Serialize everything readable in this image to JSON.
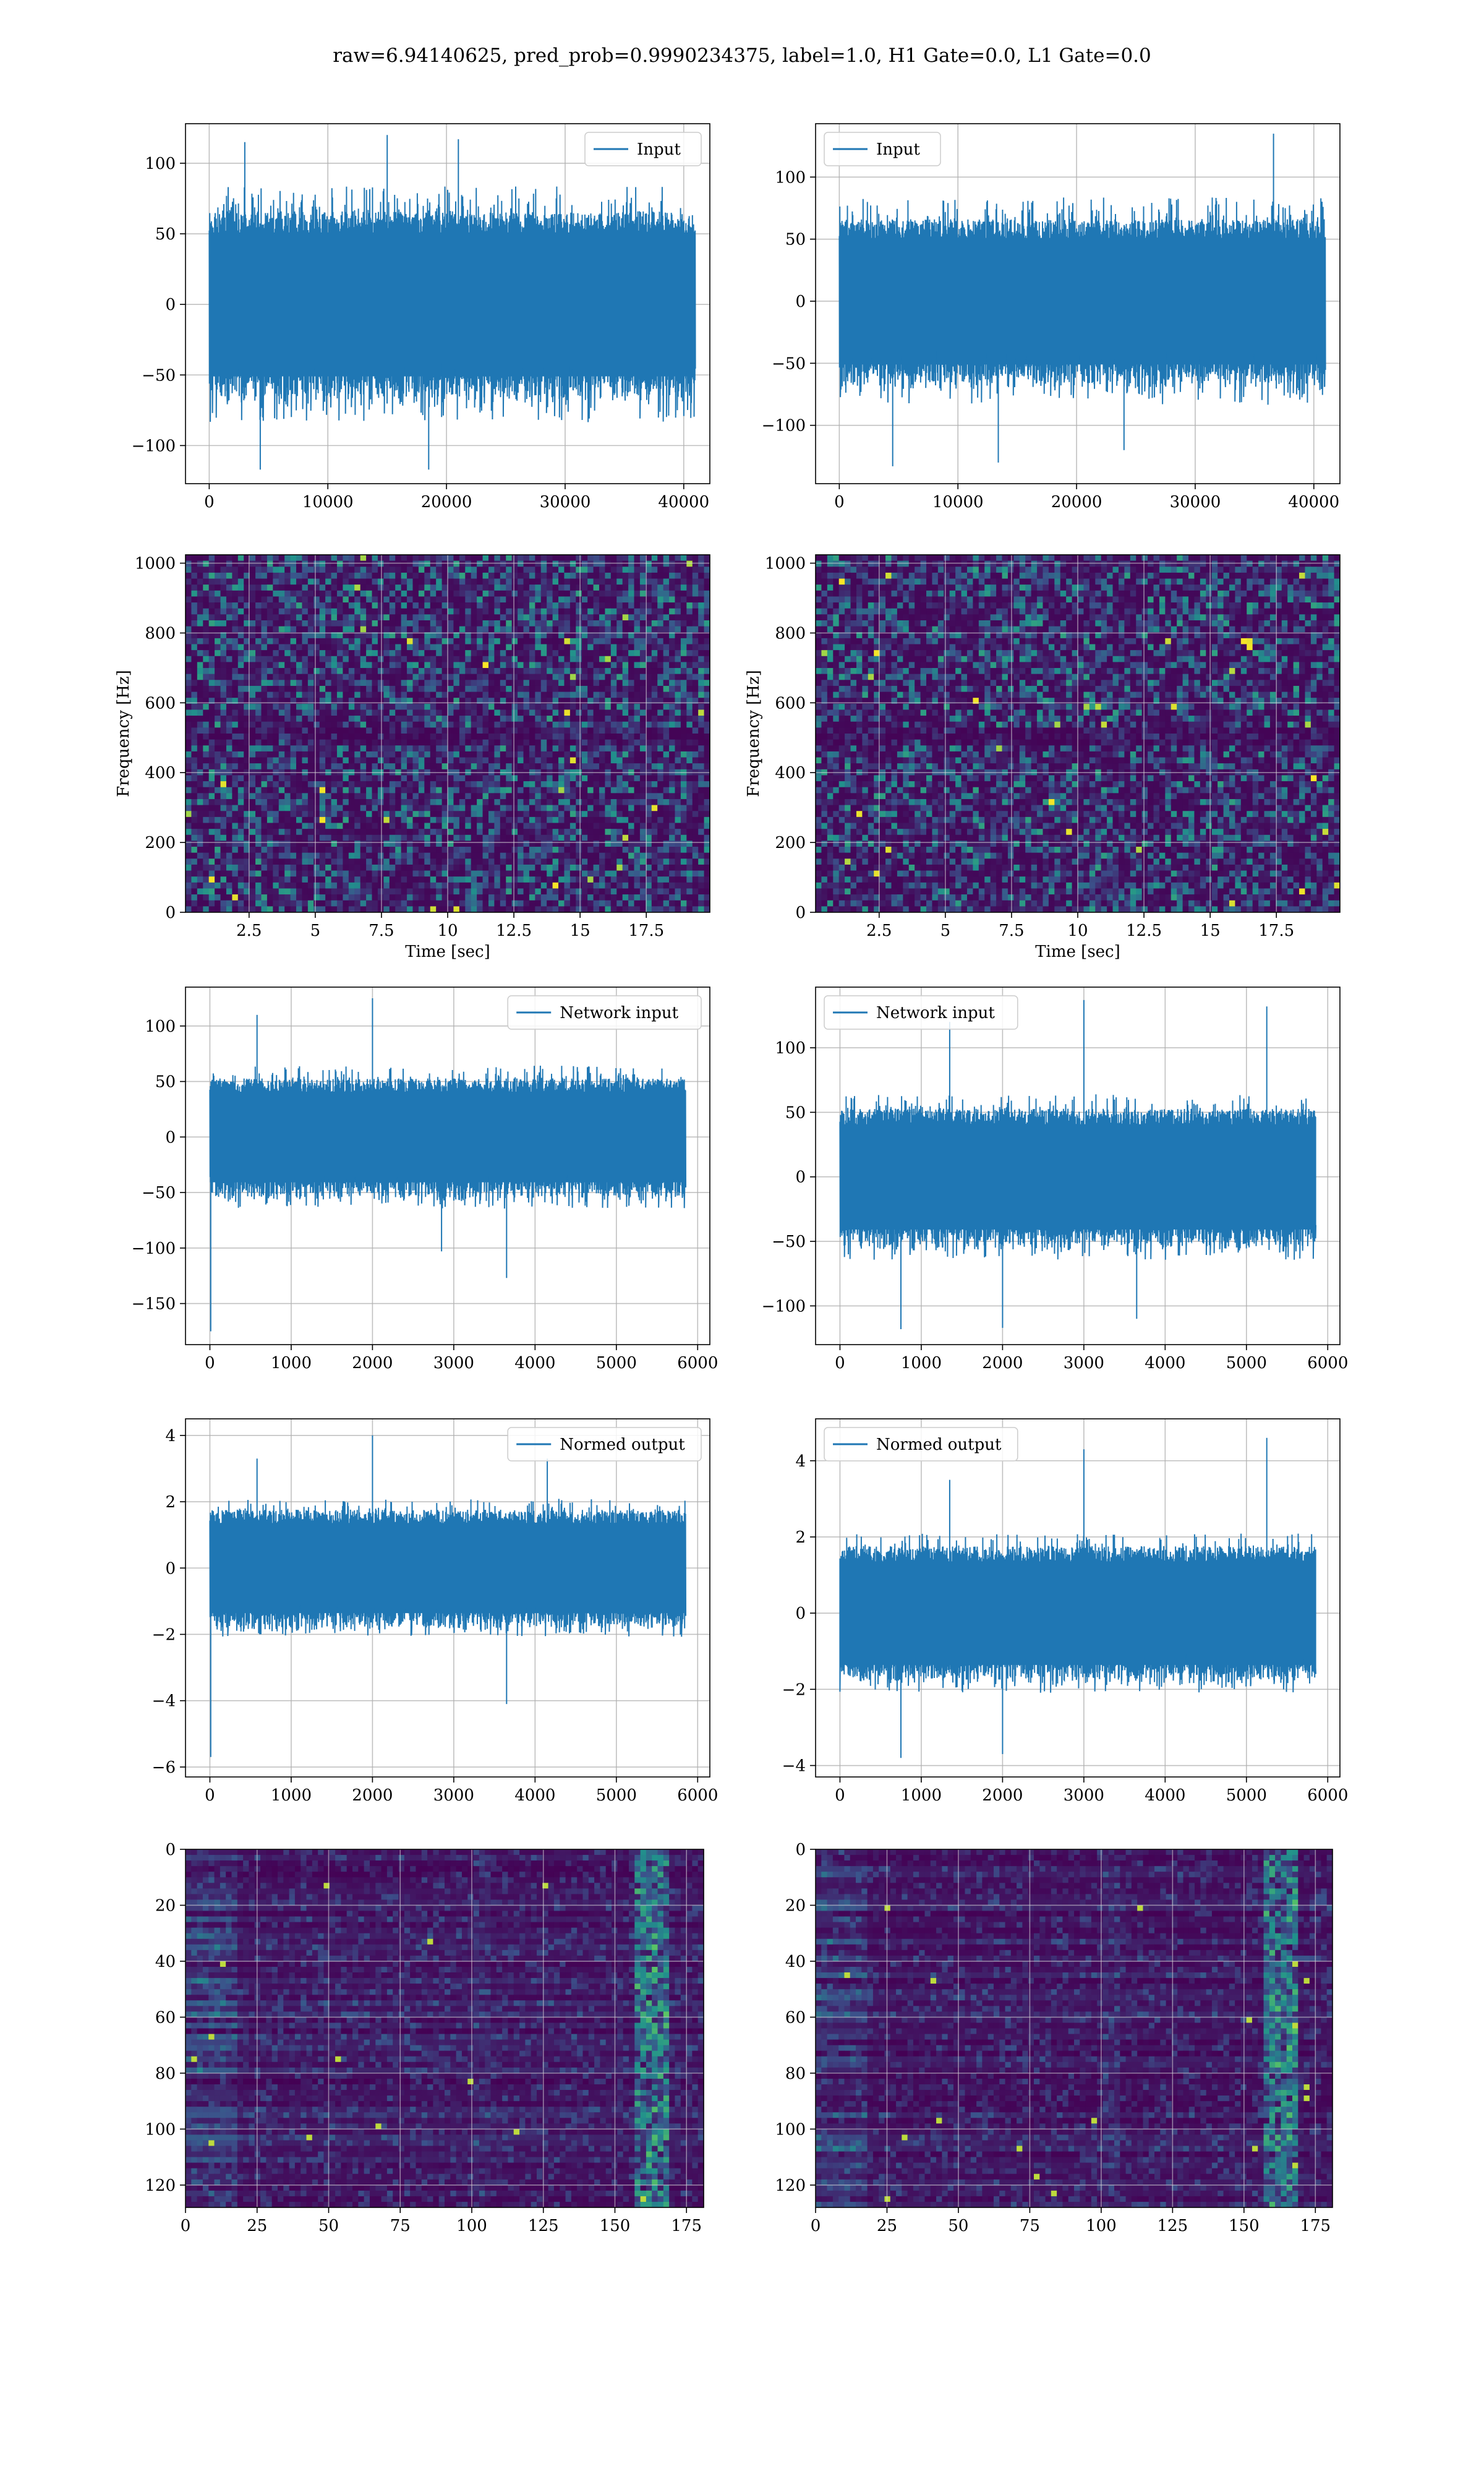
{
  "figure": {
    "title": "raw=6.94140625, pred_prob=0.9990234375, label=1.0, H1 Gate=0.0, L1 Gate=0.0"
  },
  "colors": {
    "series": "#1f77b4",
    "grid": "#b0b0b0",
    "axes": "#000000"
  },
  "chart_data": [
    {
      "id": "input_h1",
      "type": "line",
      "legend": "Input",
      "legend_position": "top-right",
      "xlim": [
        -2000,
        42200
      ],
      "ylim": [
        -127,
        128
      ],
      "xticks": [
        0,
        10000,
        20000,
        30000,
        40000
      ],
      "yticks": [
        -100,
        -50,
        0,
        50,
        100
      ],
      "x_range": [
        0,
        40960
      ],
      "n_points": 900,
      "noise_sigma": 22,
      "envelope": 60,
      "spikes": [
        [
          3000,
          115
        ],
        [
          15000,
          120
        ],
        [
          21000,
          117
        ],
        [
          4300,
          -117
        ],
        [
          18500,
          -117
        ]
      ],
      "grid": true
    },
    {
      "id": "input_l1",
      "type": "line",
      "legend": "Input",
      "legend_position": "top-left",
      "xlim": [
        -2000,
        42200
      ],
      "ylim": [
        -147,
        143
      ],
      "xticks": [
        0,
        10000,
        20000,
        30000,
        40000
      ],
      "yticks": [
        -100,
        -50,
        0,
        50,
        100
      ],
      "x_range": [
        0,
        40960
      ],
      "n_points": 900,
      "noise_sigma": 22,
      "envelope": 60,
      "spikes": [
        [
          36600,
          135
        ],
        [
          4500,
          -133
        ],
        [
          13400,
          -130
        ],
        [
          24000,
          -120
        ]
      ],
      "grid": true
    },
    {
      "id": "spec_h1",
      "type": "heatmap",
      "colormap": "viridis",
      "xlim": [
        0.1,
        19.9
      ],
      "ylim": [
        0,
        1024
      ],
      "xticks": [
        2.5,
        5.0,
        7.5,
        10.0,
        12.5,
        15.0,
        17.5
      ],
      "yticks": [
        0,
        200,
        400,
        600,
        800,
        1000
      ],
      "xlabel": "Time [sec]",
      "ylabel": "Frequency [Hz]",
      "grid": true,
      "seed": 11
    },
    {
      "id": "spec_l1",
      "type": "heatmap",
      "colormap": "viridis",
      "xlim": [
        0.1,
        19.9
      ],
      "ylim": [
        0,
        1024
      ],
      "xticks": [
        2.5,
        5.0,
        7.5,
        10.0,
        12.5,
        15.0,
        17.5
      ],
      "yticks": [
        0,
        200,
        400,
        600,
        800,
        1000
      ],
      "xlabel": "Time [sec]",
      "ylabel": "Frequency [Hz]",
      "grid": true,
      "seed": 23
    },
    {
      "id": "net_h1",
      "type": "line",
      "legend": "Network input",
      "legend_position": "top-right",
      "xlim": [
        -300,
        6150
      ],
      "ylim": [
        -187,
        135
      ],
      "xticks": [
        0,
        1000,
        2000,
        3000,
        4000,
        5000,
        6000
      ],
      "yticks": [
        -150,
        -100,
        -50,
        0,
        50,
        100
      ],
      "x_range": [
        0,
        5850
      ],
      "n_points": 850,
      "noise_sigma": 17,
      "envelope": 48,
      "spikes": [
        [
          10,
          -175
        ],
        [
          2000,
          125
        ],
        [
          3650,
          -127
        ],
        [
          580,
          110
        ],
        [
          2850,
          -103
        ]
      ],
      "grid": true
    },
    {
      "id": "net_l1",
      "type": "line",
      "legend": "Network input",
      "legend_position": "top-left",
      "xlim": [
        -300,
        6150
      ],
      "ylim": [
        -130,
        147
      ],
      "xticks": [
        0,
        1000,
        2000,
        3000,
        4000,
        5000,
        6000
      ],
      "yticks": [
        -100,
        -50,
        0,
        50,
        100
      ],
      "x_range": [
        0,
        5850
      ],
      "n_points": 850,
      "noise_sigma": 17,
      "envelope": 48,
      "spikes": [
        [
          3000,
          137
        ],
        [
          5250,
          132
        ],
        [
          1350,
          120
        ],
        [
          750,
          -118
        ],
        [
          2000,
          -117
        ],
        [
          3650,
          -110
        ]
      ],
      "grid": true
    },
    {
      "id": "norm_h1",
      "type": "line",
      "legend": "Normed output",
      "legend_position": "top-right",
      "xlim": [
        -300,
        6150
      ],
      "ylim": [
        -6.3,
        4.5
      ],
      "xticks": [
        0,
        1000,
        2000,
        3000,
        4000,
        5000,
        6000
      ],
      "yticks": [
        -6,
        -4,
        -2,
        0,
        2,
        4
      ],
      "x_range": [
        0,
        5850
      ],
      "n_points": 850,
      "noise_sigma": 0.55,
      "envelope": 1.6,
      "spikes": [
        [
          10,
          -5.7
        ],
        [
          2000,
          4.0
        ],
        [
          3650,
          -4.1
        ],
        [
          580,
          3.3
        ],
        [
          4150,
          3.3
        ]
      ],
      "grid": true
    },
    {
      "id": "norm_l1",
      "type": "line",
      "legend": "Normed output",
      "legend_position": "top-left",
      "xlim": [
        -300,
        6150
      ],
      "ylim": [
        -4.3,
        5.1
      ],
      "xticks": [
        0,
        1000,
        2000,
        3000,
        4000,
        5000,
        6000
      ],
      "yticks": [
        -4,
        -2,
        0,
        2,
        4
      ],
      "x_range": [
        0,
        5850
      ],
      "n_points": 850,
      "noise_sigma": 0.55,
      "envelope": 1.6,
      "spikes": [
        [
          3000,
          4.3
        ],
        [
          5250,
          4.6
        ],
        [
          1350,
          3.5
        ],
        [
          750,
          -3.8
        ],
        [
          2000,
          -3.7
        ]
      ],
      "grid": true
    },
    {
      "id": "emb_h1",
      "type": "heatmap",
      "colormap": "viridis",
      "xlim": [
        0,
        181
      ],
      "ylim": [
        128,
        0
      ],
      "xticks": [
        0,
        25,
        50,
        75,
        100,
        125,
        150,
        175
      ],
      "yticks": [
        0,
        20,
        40,
        60,
        80,
        100,
        120
      ],
      "grid": true,
      "seed": 37
    },
    {
      "id": "emb_l1",
      "type": "heatmap",
      "colormap": "viridis",
      "xlim": [
        0,
        181
      ],
      "ylim": [
        128,
        0
      ],
      "xticks": [
        0,
        25,
        50,
        75,
        100,
        125,
        150,
        175
      ],
      "yticks": [
        0,
        20,
        40,
        60,
        80,
        100,
        120
      ],
      "grid": true,
      "seed": 53
    }
  ]
}
